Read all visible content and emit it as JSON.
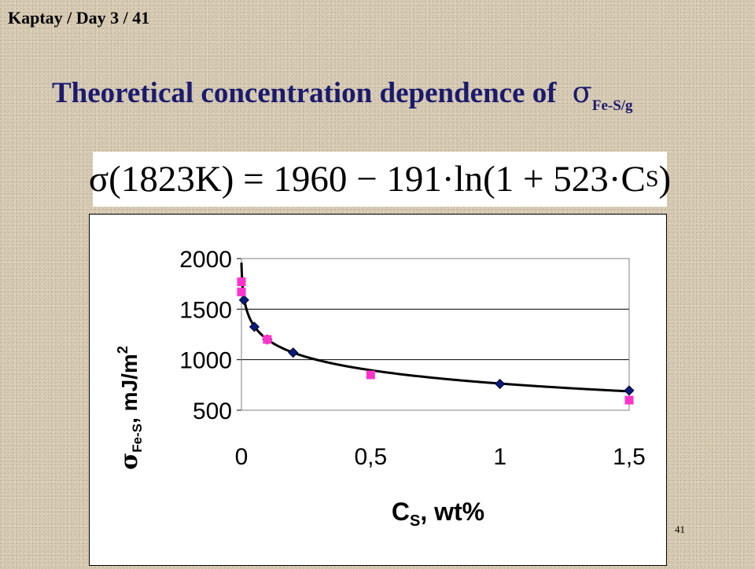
{
  "header": {
    "text": "Kaptay / Day 3 / 41"
  },
  "title": {
    "text": "Theoretical concentration dependence of",
    "symbol": "σ",
    "subscript": "Fe-S/g"
  },
  "formula": {
    "text": "σ(1823K) = 1960 − 191·ln(1 + 523·C",
    "subscript": "S",
    "close": ")"
  },
  "slide_number": "41",
  "chart_data": {
    "type": "scatter",
    "title": "",
    "xlabel": "C",
    "xlabel_subscript": "S",
    "xlabel_suffix": ", wt%",
    "ylabel_symbol": "σ",
    "ylabel_subscript": "Fe-S",
    "ylabel_suffix": ", mJ/m",
    "ylabel_superscript": "2",
    "xlim": [
      0,
      1.5
    ],
    "ylim": [
      500,
      2000
    ],
    "x_ticks": [
      "0",
      "0,5",
      "1",
      "1,5"
    ],
    "y_ticks": [
      "500",
      "1000",
      "1500",
      "2000"
    ],
    "grid": "horizontal",
    "legend": "none",
    "curve": {
      "formula": "1960 - 191*ln(1 + 523*x)",
      "color": "#000000"
    },
    "series": [
      {
        "marker": "diamond",
        "color": "#0a1a80",
        "points": [
          {
            "x": 0.01,
            "y": 1590
          },
          {
            "x": 0.05,
            "y": 1325
          },
          {
            "x": 0.1,
            "y": 1200
          },
          {
            "x": 0.2,
            "y": 1070
          },
          {
            "x": 1.0,
            "y": 760
          },
          {
            "x": 1.5,
            "y": 695
          }
        ]
      },
      {
        "marker": "square",
        "color": "#ff33cc",
        "points": [
          {
            "x": 0.0,
            "y": 1770
          },
          {
            "x": 0.0,
            "y": 1670
          },
          {
            "x": 0.1,
            "y": 1200
          },
          {
            "x": 0.5,
            "y": 850
          },
          {
            "x": 1.5,
            "y": 600
          }
        ]
      }
    ]
  }
}
